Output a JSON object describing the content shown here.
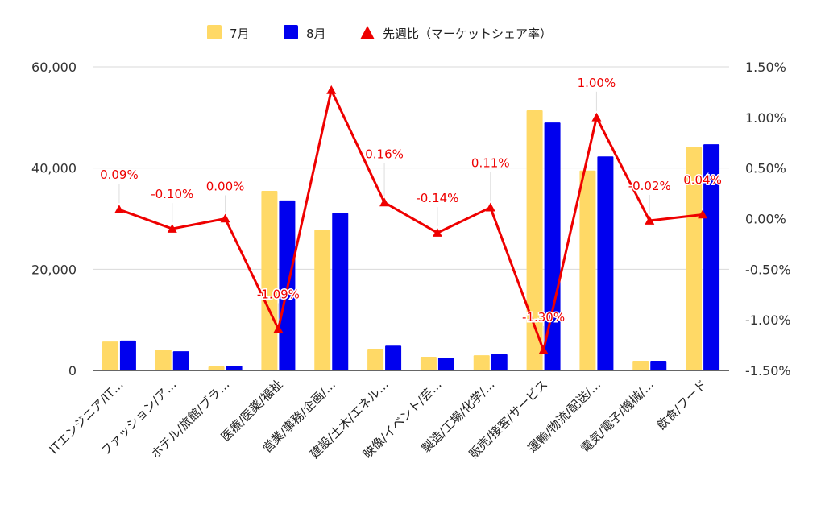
{
  "chart_data": {
    "type": "bar",
    "categories": [
      "ITエンジニア/IT…",
      "ファッション/ア…",
      "ホテル/旅館/ブラ…",
      "医療/医薬/福祉",
      "営業/事務/企画/…",
      "建設/土木/エネル…",
      "映像/イベント/芸…",
      "製造/工場/化学/…",
      "販売/接客/サービス",
      "運輸/物流/配送/…",
      "電気/電子/機械/…",
      "飲食/フード"
    ],
    "series": [
      {
        "name": "7月",
        "type": "bar",
        "axis": "left",
        "color": "#FFD966",
        "values": [
          5700,
          4100,
          800,
          35500,
          27800,
          4300,
          2700,
          3000,
          51400,
          39500,
          1900,
          44100
        ]
      },
      {
        "name": "8月",
        "type": "bar",
        "axis": "left",
        "color": "#0000EE",
        "values": [
          5900,
          3800,
          900,
          33600,
          31100,
          4900,
          2500,
          3200,
          49000,
          42300,
          1900,
          44700
        ]
      },
      {
        "name": "先週比（マーケットシェア率）",
        "type": "line",
        "axis": "right",
        "color": "#EE0000",
        "marker": "triangle",
        "values": [
          0.09,
          -0.1,
          0.0,
          -1.09,
          1.27,
          0.16,
          -0.14,
          0.11,
          -1.3,
          1.0,
          -0.02,
          0.04
        ],
        "labels": [
          "0.09%",
          "-0.10%",
          "0.00%",
          "-1.09%",
          "",
          "0.16%",
          "-0.14%",
          "0.11%",
          "-1.30%",
          "1.00%",
          "-0.02%",
          "0.04%"
        ]
      }
    ],
    "yaxis_left": {
      "ticks": [
        "60,000",
        "40,000",
        "20,000",
        "0"
      ],
      "ylim": [
        0,
        60000
      ]
    },
    "yaxis_right": {
      "ticks": [
        "1.50%",
        "1.00%",
        "0.50%",
        "0.00%",
        "-0.50%",
        "-1.00%",
        "-1.50%"
      ],
      "ylim": [
        -1.5,
        1.5
      ]
    },
    "legend": {
      "position": "top",
      "items": [
        "7月",
        "8月",
        "先週比（マーケットシェア率）"
      ]
    },
    "grid": true,
    "colors": {
      "gridline": "#d9d9d9",
      "baseline": "#333333",
      "label_text": "#EE0000"
    }
  }
}
